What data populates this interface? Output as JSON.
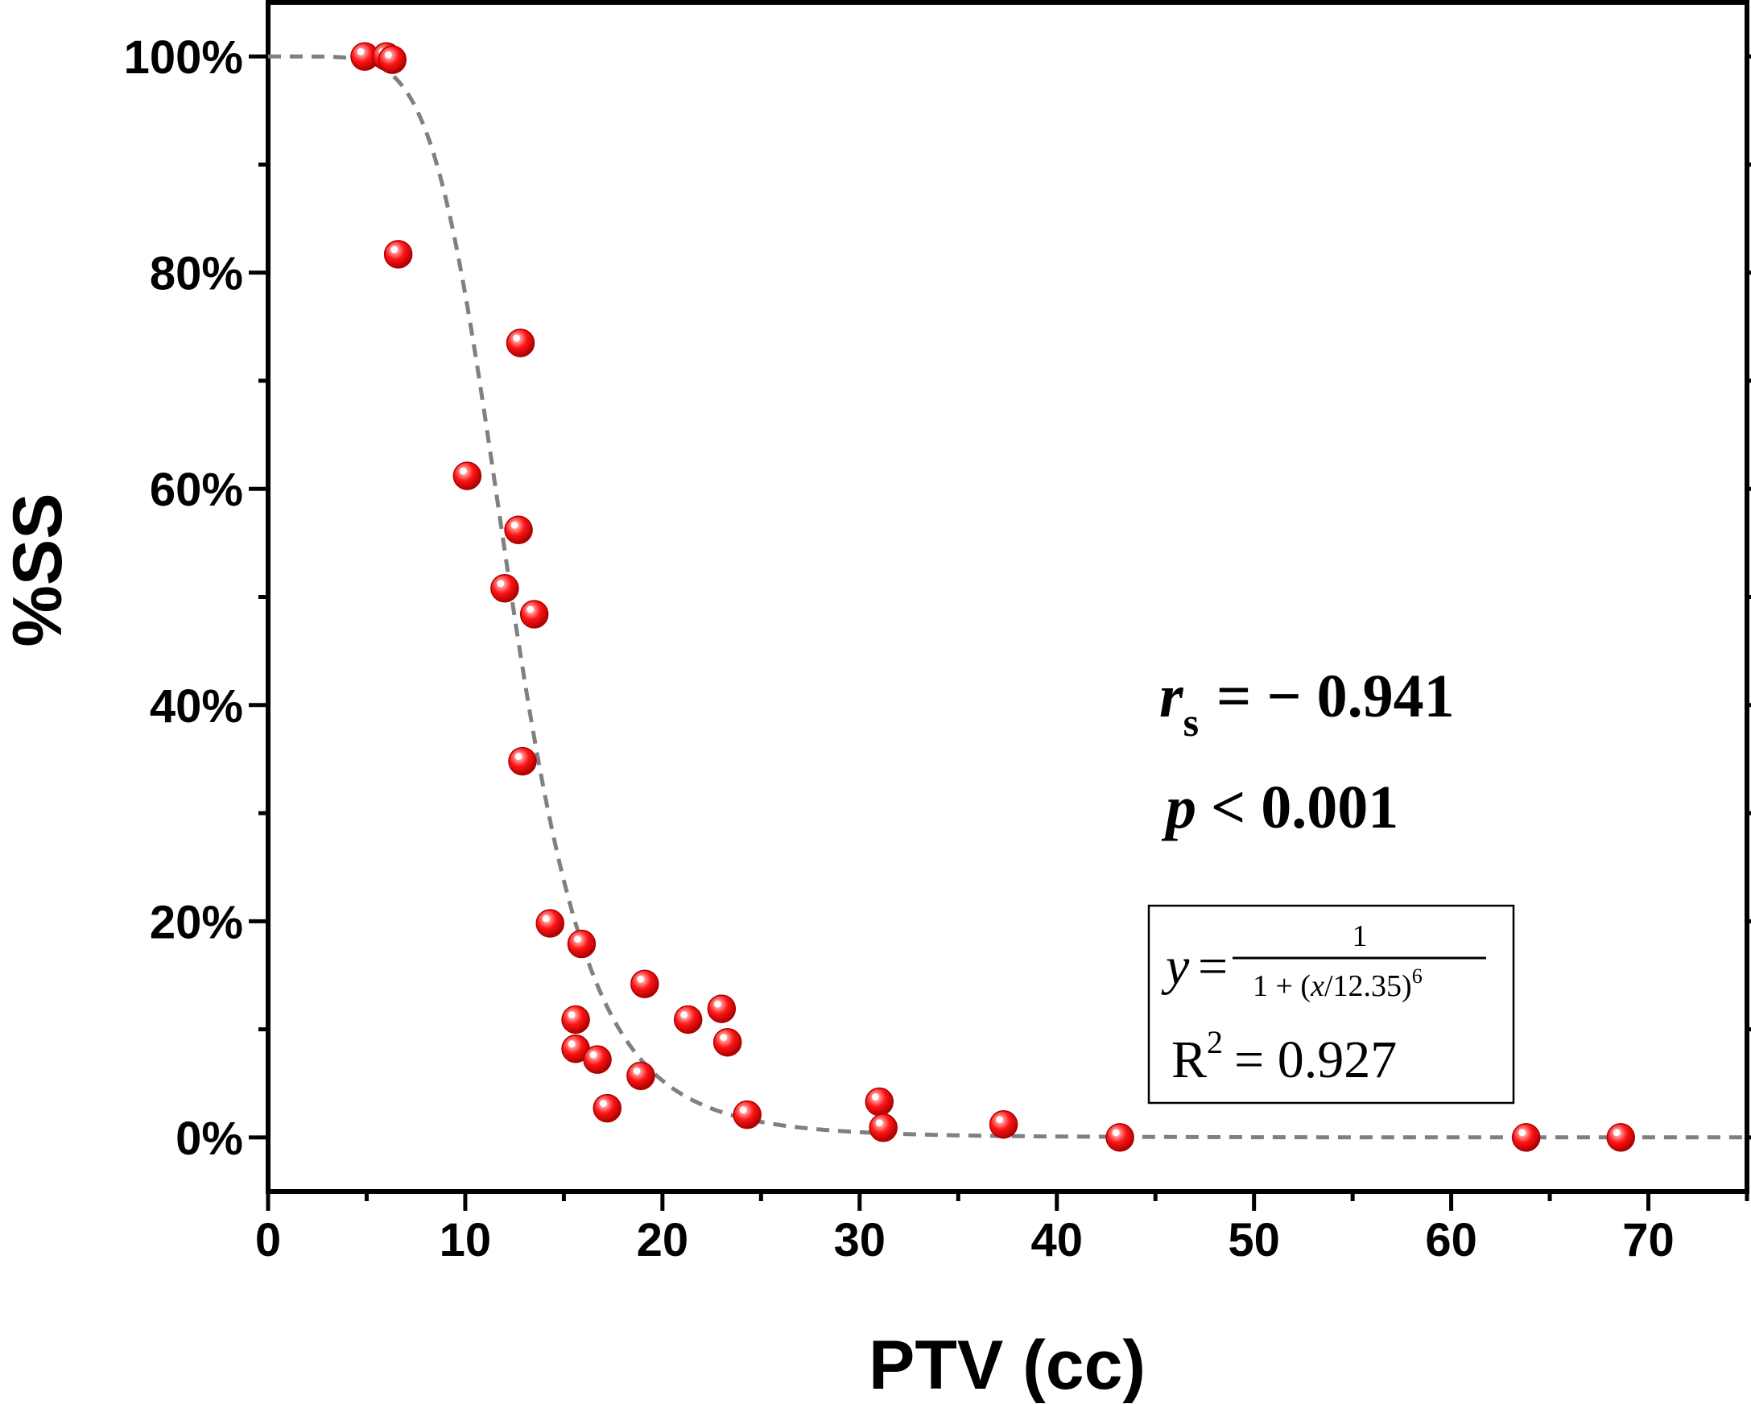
{
  "chart_data": {
    "type": "scatter",
    "xlabel": "PTV (cc)",
    "ylabel": "%SS",
    "xlim": [
      0,
      75
    ],
    "ylim": [
      -5,
      105
    ],
    "x_ticks": [
      0,
      10,
      20,
      30,
      40,
      50,
      60,
      70
    ],
    "x_tick_labels": [
      "0",
      "10",
      "20",
      "30",
      "40",
      "50",
      "60",
      "70"
    ],
    "y_ticks": [
      0,
      20,
      40,
      60,
      80,
      100
    ],
    "y_tick_labels": [
      "0%",
      "20%",
      "40%",
      "60%",
      "80%",
      "100%"
    ],
    "points": [
      {
        "x": 4.9,
        "y": 100
      },
      {
        "x": 6.0,
        "y": 100
      },
      {
        "x": 6.3,
        "y": 99.7
      },
      {
        "x": 6.6,
        "y": 81.7
      },
      {
        "x": 12.8,
        "y": 73.5
      },
      {
        "x": 10.1,
        "y": 61.2
      },
      {
        "x": 12.7,
        "y": 56.2
      },
      {
        "x": 12.0,
        "y": 50.8
      },
      {
        "x": 13.5,
        "y": 48.4
      },
      {
        "x": 12.9,
        "y": 34.8
      },
      {
        "x": 14.3,
        "y": 19.8
      },
      {
        "x": 15.9,
        "y": 17.9
      },
      {
        "x": 19.1,
        "y": 14.2
      },
      {
        "x": 15.6,
        "y": 10.9
      },
      {
        "x": 21.3,
        "y": 10.9
      },
      {
        "x": 23.0,
        "y": 11.9
      },
      {
        "x": 23.3,
        "y": 8.8
      },
      {
        "x": 15.6,
        "y": 8.2
      },
      {
        "x": 16.7,
        "y": 7.2
      },
      {
        "x": 18.9,
        "y": 5.7
      },
      {
        "x": 17.2,
        "y": 2.7
      },
      {
        "x": 24.3,
        "y": 2.1
      },
      {
        "x": 31.0,
        "y": 3.3
      },
      {
        "x": 31.2,
        "y": 0.9
      },
      {
        "x": 37.3,
        "y": 1.2
      },
      {
        "x": 43.2,
        "y": 0.0
      },
      {
        "x": 63.8,
        "y": 0.0
      },
      {
        "x": 68.6,
        "y": 0.0
      }
    ],
    "fit": {
      "type": "hill",
      "x0": 12.35,
      "n": 6,
      "style": "dashed",
      "color": "#808080"
    },
    "marker_color": "#e41010"
  },
  "annotations": {
    "rs_symbol": "r",
    "rs_subscript": "s",
    "rs_value": "= − 0.941",
    "p_symbol": "p",
    "p_value": "< 0.001",
    "formula_y": "y",
    "formula_eq": "=",
    "formula_numerator": "1",
    "formula_denom_prefix": "1 + (",
    "formula_denom_x": "x",
    "formula_denom_suffix": "/12.35)",
    "formula_exponent": "6",
    "r2_label": "R",
    "r2_exponent": "2",
    "r2_value": "= 0.927"
  }
}
